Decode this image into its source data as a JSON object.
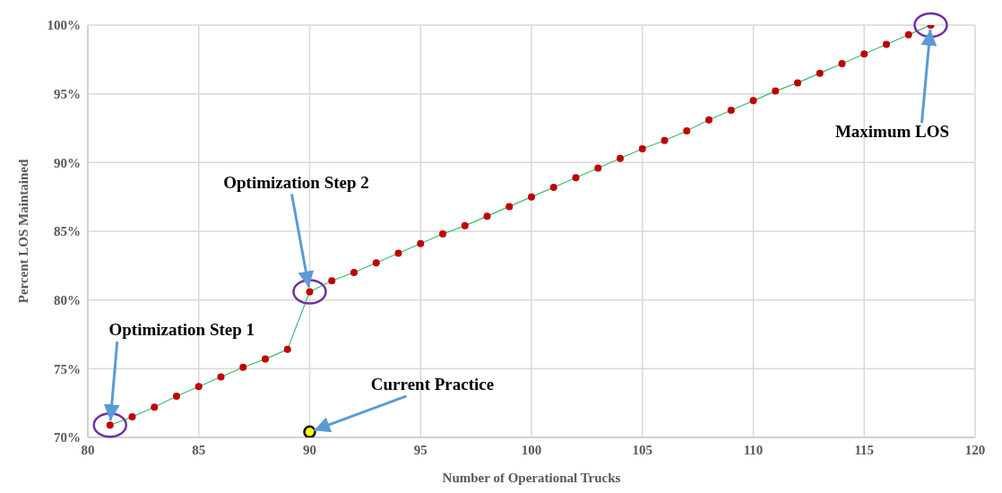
{
  "chart_data": {
    "type": "line",
    "xlabel": "Number of Operational Trucks",
    "ylabel": "Percent LOS Maintained",
    "xlim": [
      80,
      120
    ],
    "xticks": [
      80,
      85,
      90,
      95,
      100,
      105,
      110,
      115,
      120
    ],
    "ylim": [
      70,
      100
    ],
    "yticks": [
      {
        "value": 70,
        "label": "70%"
      },
      {
        "value": 75,
        "label": "75%"
      },
      {
        "value": 80,
        "label": "80%"
      },
      {
        "value": 85,
        "label": "85%"
      },
      {
        "value": 90,
        "label": "90%"
      },
      {
        "value": 95,
        "label": "95%"
      },
      {
        "value": 100,
        "label": "100%"
      }
    ],
    "grid": true,
    "marker": "circle",
    "line_style": "solid",
    "series": [
      {
        "color": "#3cba6c",
        "colors": [
          "#c00000",
          "#c00000",
          "#c00000",
          "#c00000",
          "#c00000",
          "#c00000",
          "#c00000",
          "#c00000",
          "#c00000",
          "#c00000",
          "#c00000",
          "#c00000",
          "#c00000",
          "#c00000",
          "#c00000",
          "#c00000",
          "#c00000",
          "#c00000",
          "#c00000",
          "#c00000",
          "#c00000",
          "#c00000",
          "#c00000",
          "#c00000",
          "#c00000",
          "#c00000",
          "#c00000",
          "#c00000",
          "#c00000",
          "#c00000",
          "#c00000",
          "#c00000",
          "#c00000",
          "#c00000",
          "#c00000",
          "#c00000",
          "#c00000",
          "#c00000"
        ],
        "x": [
          81,
          82,
          83,
          84,
          85,
          86,
          87,
          88,
          89,
          90,
          91,
          92,
          93,
          94,
          95,
          96,
          97,
          98,
          99,
          100,
          101,
          102,
          103,
          104,
          105,
          106,
          107,
          108,
          109,
          110,
          111,
          112,
          113,
          114,
          115,
          116,
          117,
          118
        ],
        "values": [
          70.9,
          71.5,
          72.2,
          73.0,
          73.7,
          74.4,
          75.1,
          75.7,
          76.4,
          80.6,
          81.4,
          82.0,
          82.7,
          83.4,
          84.1,
          84.8,
          85.4,
          86.1,
          86.8,
          87.5,
          88.2,
          88.9,
          89.6,
          90.3,
          91.0,
          91.6,
          92.3,
          93.1,
          93.8,
          94.5,
          95.2,
          95.8,
          96.5,
          97.2,
          97.9,
          98.6,
          99.3,
          100
        ]
      },
      {
        "type": "scatter",
        "color": "#ffff00",
        "x": [
          90
        ],
        "values": [
          70.4
        ]
      }
    ],
    "annotations": [
      {
        "text": "Optimization Step 1",
        "x": 81,
        "y": 70.9
      },
      {
        "text": "Optimization Step 2",
        "x": 90,
        "y": 80.6
      },
      {
        "text": "Maximum LOS",
        "x": 118,
        "y": 100
      },
      {
        "text": "Current Practice",
        "x": 90,
        "y": 70.4
      }
    ]
  }
}
